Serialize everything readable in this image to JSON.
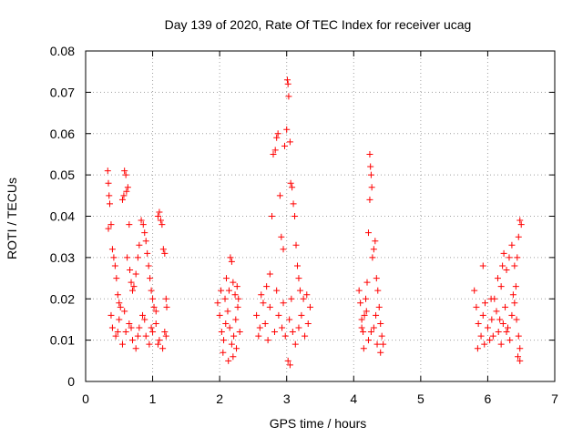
{
  "chart_data": {
    "type": "scatter",
    "title": "Day 139 of 2020, Rate Of TEC Index for receiver ucag",
    "xlabel": "GPS time / hours",
    "ylabel": "ROTI / TECUs",
    "xlim": [
      0,
      7
    ],
    "ylim": [
      0,
      0.08
    ],
    "x_ticks": [
      0,
      1,
      2,
      3,
      4,
      5,
      6,
      7
    ],
    "y_ticks": [
      0,
      0.01,
      0.02,
      0.03,
      0.04,
      0.05,
      0.06,
      0.07,
      0.08
    ],
    "x_tick_labels": [
      "0",
      "1",
      "2",
      "3",
      "4",
      "5",
      "6",
      "7"
    ],
    "y_tick_labels": [
      "0",
      "0.01",
      "0.02",
      "0.03",
      "0.04",
      "0.05",
      "0.06",
      "0.07",
      "0.08"
    ],
    "grid": true,
    "marker": "plus",
    "color": "#ff0000",
    "series": [
      {
        "values": [
          [
            0.33,
            0.051
          ],
          [
            0.34,
            0.048
          ],
          [
            0.35,
            0.045
          ],
          [
            0.36,
            0.043
          ],
          [
            0.34,
            0.037
          ],
          [
            0.38,
            0.038
          ],
          [
            0.4,
            0.032
          ],
          [
            0.42,
            0.03
          ],
          [
            0.44,
            0.028
          ],
          [
            0.46,
            0.025
          ],
          [
            0.48,
            0.021
          ],
          [
            0.5,
            0.019
          ],
          [
            0.52,
            0.018
          ],
          [
            0.55,
            0.044
          ],
          [
            0.57,
            0.045
          ],
          [
            0.58,
            0.051
          ],
          [
            0.6,
            0.05
          ],
          [
            0.61,
            0.046
          ],
          [
            0.63,
            0.047
          ],
          [
            0.65,
            0.038
          ],
          [
            0.62,
            0.03
          ],
          [
            0.66,
            0.027
          ],
          [
            0.68,
            0.024
          ],
          [
            0.7,
            0.022
          ],
          [
            0.72,
            0.023
          ],
          [
            0.75,
            0.026
          ],
          [
            0.78,
            0.03
          ],
          [
            0.8,
            0.033
          ],
          [
            0.83,
            0.039
          ],
          [
            0.86,
            0.038
          ],
          [
            0.88,
            0.036
          ],
          [
            0.9,
            0.034
          ],
          [
            0.92,
            0.031
          ],
          [
            0.94,
            0.028
          ],
          [
            0.96,
            0.025
          ],
          [
            0.98,
            0.022
          ],
          [
            1.0,
            0.02
          ],
          [
            1.02,
            0.018
          ],
          [
            1.05,
            0.017
          ],
          [
            1.08,
            0.04
          ],
          [
            1.1,
            0.041
          ],
          [
            1.12,
            0.039
          ],
          [
            1.14,
            0.038
          ],
          [
            1.16,
            0.032
          ],
          [
            1.18,
            0.031
          ],
          [
            1.2,
            0.02
          ],
          [
            1.21,
            0.018
          ],
          [
            0.4,
            0.013
          ],
          [
            0.45,
            0.011
          ],
          [
            0.5,
            0.015
          ],
          [
            0.55,
            0.009
          ],
          [
            0.6,
            0.012
          ],
          [
            0.65,
            0.014
          ],
          [
            0.7,
            0.01
          ],
          [
            0.75,
            0.008
          ],
          [
            0.8,
            0.013
          ],
          [
            0.85,
            0.016
          ],
          [
            0.9,
            0.011
          ],
          [
            0.95,
            0.009
          ],
          [
            1.0,
            0.012
          ],
          [
            1.05,
            0.014
          ],
          [
            1.1,
            0.01
          ],
          [
            1.15,
            0.008
          ],
          [
            1.2,
            0.011
          ],
          [
            0.38,
            0.016
          ],
          [
            0.48,
            0.012
          ],
          [
            0.58,
            0.017
          ],
          [
            0.68,
            0.013
          ],
          [
            0.78,
            0.011
          ],
          [
            0.88,
            0.015
          ],
          [
            0.98,
            0.013
          ],
          [
            1.08,
            0.009
          ],
          [
            1.18,
            0.012
          ],
          [
            1.97,
            0.019
          ],
          [
            2.0,
            0.016
          ],
          [
            2.03,
            0.012
          ],
          [
            2.06,
            0.01
          ],
          [
            2.09,
            0.014
          ],
          [
            2.12,
            0.017
          ],
          [
            2.15,
            0.013
          ],
          [
            2.18,
            0.009
          ],
          [
            2.21,
            0.011
          ],
          [
            2.24,
            0.015
          ],
          [
            2.27,
            0.018
          ],
          [
            2.3,
            0.012
          ],
          [
            2.02,
            0.022
          ],
          [
            2.08,
            0.02
          ],
          [
            2.1,
            0.025
          ],
          [
            2.14,
            0.022
          ],
          [
            2.16,
            0.03
          ],
          [
            2.18,
            0.029
          ],
          [
            2.2,
            0.024
          ],
          [
            2.23,
            0.021
          ],
          [
            2.26,
            0.023
          ],
          [
            2.28,
            0.02
          ],
          [
            2.05,
            0.007
          ],
          [
            2.13,
            0.005
          ],
          [
            2.2,
            0.006
          ],
          [
            2.25,
            0.008
          ],
          [
            2.55,
            0.016
          ],
          [
            2.6,
            0.013
          ],
          [
            2.65,
            0.019
          ],
          [
            2.7,
            0.023
          ],
          [
            2.75,
            0.026
          ],
          [
            2.78,
            0.04
          ],
          [
            2.8,
            0.055
          ],
          [
            2.83,
            0.056
          ],
          [
            2.85,
            0.059
          ],
          [
            2.87,
            0.06
          ],
          [
            2.9,
            0.045
          ],
          [
            2.92,
            0.035
          ],
          [
            2.95,
            0.032
          ],
          [
            2.97,
            0.057
          ],
          [
            3.0,
            0.061
          ],
          [
            3.01,
            0.073
          ],
          [
            3.02,
            0.072
          ],
          [
            3.03,
            0.069
          ],
          [
            3.05,
            0.058
          ],
          [
            3.06,
            0.048
          ],
          [
            3.08,
            0.047
          ],
          [
            3.1,
            0.043
          ],
          [
            3.12,
            0.04
          ],
          [
            3.14,
            0.033
          ],
          [
            3.16,
            0.028
          ],
          [
            3.18,
            0.025
          ],
          [
            3.2,
            0.022
          ],
          [
            3.25,
            0.02
          ],
          [
            3.3,
            0.021
          ],
          [
            3.35,
            0.018
          ],
          [
            2.58,
            0.011
          ],
          [
            2.68,
            0.014
          ],
          [
            2.72,
            0.01
          ],
          [
            2.82,
            0.012
          ],
          [
            2.88,
            0.016
          ],
          [
            2.93,
            0.013
          ],
          [
            2.98,
            0.011
          ],
          [
            3.04,
            0.015
          ],
          [
            3.09,
            0.012
          ],
          [
            3.13,
            0.009
          ],
          [
            3.18,
            0.013
          ],
          [
            3.22,
            0.016
          ],
          [
            3.27,
            0.011
          ],
          [
            3.32,
            0.014
          ],
          [
            3.02,
            0.005
          ],
          [
            3.05,
            0.004
          ],
          [
            2.62,
            0.021
          ],
          [
            2.75,
            0.018
          ],
          [
            2.85,
            0.022
          ],
          [
            2.95,
            0.019
          ],
          [
            3.07,
            0.02
          ],
          [
            4.08,
            0.022
          ],
          [
            4.1,
            0.019
          ],
          [
            4.12,
            0.015
          ],
          [
            4.14,
            0.012
          ],
          [
            4.16,
            0.016
          ],
          [
            4.18,
            0.02
          ],
          [
            4.2,
            0.024
          ],
          [
            4.22,
            0.036
          ],
          [
            4.24,
            0.055
          ],
          [
            4.25,
            0.052
          ],
          [
            4.26,
            0.05
          ],
          [
            4.27,
            0.047
          ],
          [
            4.24,
            0.044
          ],
          [
            4.28,
            0.03
          ],
          [
            4.3,
            0.032
          ],
          [
            4.32,
            0.034
          ],
          [
            4.34,
            0.025
          ],
          [
            4.36,
            0.022
          ],
          [
            4.38,
            0.018
          ],
          [
            4.4,
            0.014
          ],
          [
            4.42,
            0.011
          ],
          [
            4.44,
            0.009
          ],
          [
            4.15,
            0.008
          ],
          [
            4.22,
            0.01
          ],
          [
            4.3,
            0.013
          ],
          [
            4.35,
            0.009
          ],
          [
            4.4,
            0.007
          ],
          [
            4.12,
            0.013
          ],
          [
            4.19,
            0.017
          ],
          [
            4.26,
            0.012
          ],
          [
            4.33,
            0.016
          ],
          [
            5.8,
            0.022
          ],
          [
            5.83,
            0.018
          ],
          [
            5.86,
            0.014
          ],
          [
            5.9,
            0.011
          ],
          [
            5.93,
            0.016
          ],
          [
            5.96,
            0.019
          ],
          [
            6.0,
            0.013
          ],
          [
            6.03,
            0.01
          ],
          [
            6.06,
            0.015
          ],
          [
            6.1,
            0.02
          ],
          [
            6.13,
            0.017
          ],
          [
            6.16,
            0.012
          ],
          [
            6.2,
            0.009
          ],
          [
            6.23,
            0.014
          ],
          [
            6.26,
            0.018
          ],
          [
            6.3,
            0.013
          ],
          [
            6.33,
            0.01
          ],
          [
            6.36,
            0.016
          ],
          [
            6.4,
            0.019
          ],
          [
            6.43,
            0.015
          ],
          [
            6.46,
            0.011
          ],
          [
            6.48,
            0.008
          ],
          [
            5.93,
            0.028
          ],
          [
            6.05,
            0.02
          ],
          [
            6.15,
            0.025
          ],
          [
            6.2,
            0.023
          ],
          [
            6.22,
            0.028
          ],
          [
            6.24,
            0.031
          ],
          [
            6.28,
            0.027
          ],
          [
            6.32,
            0.03
          ],
          [
            6.36,
            0.033
          ],
          [
            6.4,
            0.028
          ],
          [
            6.44,
            0.03
          ],
          [
            6.46,
            0.035
          ],
          [
            6.48,
            0.039
          ],
          [
            6.5,
            0.038
          ],
          [
            6.42,
            0.023
          ],
          [
            6.38,
            0.021
          ],
          [
            6.48,
            0.005
          ],
          [
            6.45,
            0.006
          ],
          [
            5.85,
            0.008
          ],
          [
            5.95,
            0.009
          ],
          [
            6.08,
            0.011
          ],
          [
            6.18,
            0.015
          ],
          [
            6.28,
            0.012
          ]
        ]
      }
    ]
  }
}
